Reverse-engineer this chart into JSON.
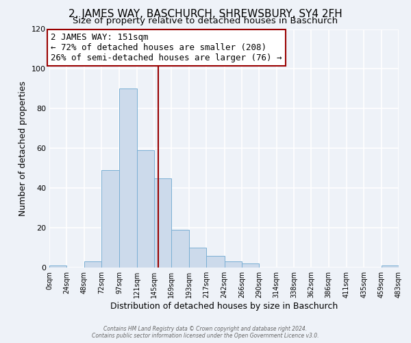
{
  "title": "2, JAMES WAY, BASCHURCH, SHREWSBURY, SY4 2FH",
  "subtitle": "Size of property relative to detached houses in Baschurch",
  "xlabel": "Distribution of detached houses by size in Baschurch",
  "ylabel": "Number of detached properties",
  "bar_color": "#ccdaeb",
  "bar_edge_color": "#7aafd4",
  "background_color": "#eef2f8",
  "grid_color": "#ffffff",
  "bin_edges": [
    0,
    24,
    48,
    72,
    97,
    121,
    145,
    169,
    193,
    217,
    242,
    266,
    290,
    314,
    338,
    362,
    386,
    411,
    435,
    459,
    483
  ],
  "bin_labels": [
    "0sqm",
    "24sqm",
    "48sqm",
    "72sqm",
    "97sqm",
    "121sqm",
    "145sqm",
    "169sqm",
    "193sqm",
    "217sqm",
    "242sqm",
    "266sqm",
    "290sqm",
    "314sqm",
    "338sqm",
    "362sqm",
    "386sqm",
    "411sqm",
    "435sqm",
    "459sqm",
    "483sqm"
  ],
  "counts": [
    1,
    0,
    3,
    49,
    90,
    59,
    45,
    19,
    10,
    6,
    3,
    2,
    0,
    0,
    0,
    0,
    0,
    0,
    0,
    1
  ],
  "property_size": 151,
  "property_label": "2 JAMES WAY: 151sqm",
  "annotation_line1": "← 72% of detached houses are smaller (208)",
  "annotation_line2": "26% of semi-detached houses are larger (76) →",
  "vline_color": "#990000",
  "annotation_box_edge": "#990000",
  "footer1": "Contains HM Land Registry data © Crown copyright and database right 2024.",
  "footer2": "Contains public sector information licensed under the Open Government Licence v3.0.",
  "ylim": [
    0,
    120
  ],
  "title_fontsize": 11,
  "subtitle_fontsize": 9.5,
  "annotation_fontsize": 9
}
